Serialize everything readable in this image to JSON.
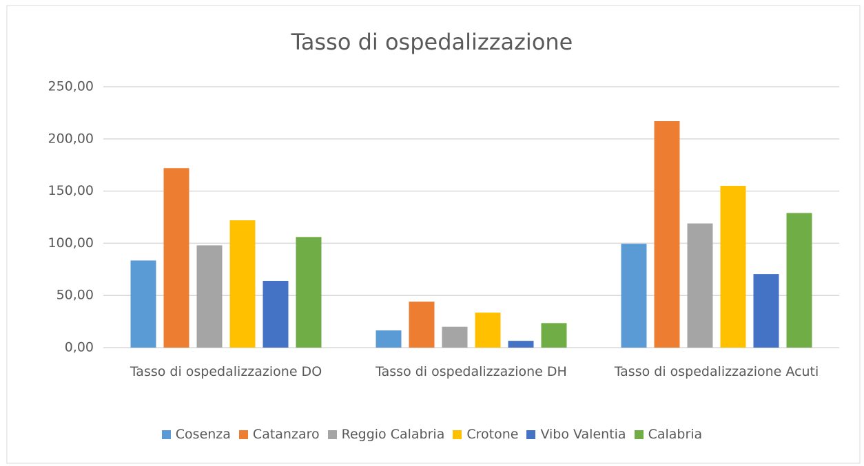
{
  "chart_data": {
    "type": "bar",
    "title": "Tasso di ospedalizzazione",
    "categories": [
      "Tasso di ospedalizzazione DO",
      "Tasso di ospedalizzazione DH",
      "Tasso di ospedalizzazione Acuti"
    ],
    "series": [
      {
        "name": "Cosenza",
        "color": "#5b9bd5",
        "values": [
          83.5,
          16.5,
          99.5
        ]
      },
      {
        "name": "Catanzaro",
        "color": "#ed7d31",
        "values": [
          172,
          44,
          217
        ]
      },
      {
        "name": "Reggio Calabria",
        "color": "#a5a5a5",
        "values": [
          98,
          20,
          119
        ]
      },
      {
        "name": "Crotone",
        "color": "#ffc000",
        "values": [
          122,
          33.5,
          155
        ]
      },
      {
        "name": "Vibo Valentia",
        "color": "#4472c4",
        "values": [
          64,
          6.5,
          70.5
        ]
      },
      {
        "name": "Calabria",
        "color": "#70ad47",
        "values": [
          106,
          23.5,
          129
        ]
      }
    ],
    "ylim": [
      0,
      250
    ],
    "yticks": [
      {
        "value": 0,
        "label": "0,00"
      },
      {
        "value": 50,
        "label": "50,00"
      },
      {
        "value": 100,
        "label": "100,00"
      },
      {
        "value": 150,
        "label": "150,00"
      },
      {
        "value": 200,
        "label": "200,00"
      },
      {
        "value": 250,
        "label": "250,00"
      }
    ],
    "grid": true,
    "legend": "bottom"
  }
}
